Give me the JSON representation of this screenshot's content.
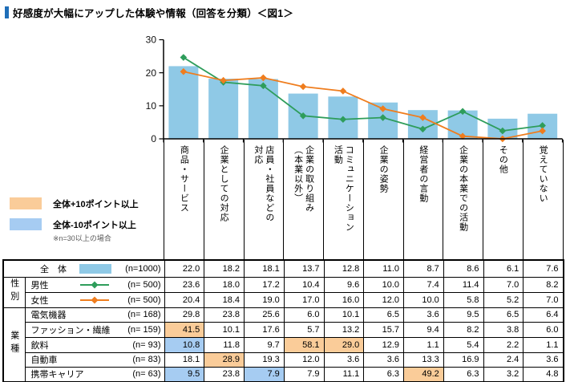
{
  "title": {
    "text": "好感度が大幅にアップした体験や情報（回答を分類）＜図1＞",
    "accent_color": "#1F6EB8"
  },
  "colors": {
    "bar": "#8FC9E6",
    "highlight_plus": "#FACC99",
    "highlight_minus": "#A6CCF2"
  },
  "chart_data": {
    "type": "bar+line",
    "categories": [
      "商品・サービス",
      "企業としての対応",
      "店員・社員などの\n対応",
      "企業の取り組み\n（本業以外）",
      "コミュニケーション\n活動",
      "企業の姿勢",
      "経営者の言動",
      "企業の本業での活動",
      "その他",
      "覚えていない"
    ],
    "series": [
      {
        "name": "全体",
        "type": "bar",
        "n": 1000,
        "color": "#8FC9E6",
        "values": [
          22.0,
          18.2,
          18.1,
          13.7,
          12.8,
          11.0,
          8.7,
          8.6,
          6.1,
          7.6
        ]
      },
      {
        "name": "男性",
        "type": "line",
        "n": 500,
        "color": "#2E9D5B",
        "marker": "diamond",
        "values": [
          23.6,
          18.0,
          17.2,
          10.4,
          9.6,
          10.0,
          7.4,
          11.4,
          7.0,
          8.2
        ]
      },
      {
        "name": "女性",
        "type": "line",
        "n": 500,
        "color": "#EF7D1E",
        "marker": "diamond",
        "values": [
          20.4,
          18.4,
          19.0,
          17.0,
          16.0,
          12.0,
          10.0,
          5.8,
          5.2,
          7.0
        ]
      }
    ],
    "ylim": [
      0,
      30
    ],
    "yticks": [
      0,
      10,
      20,
      30
    ],
    "grid": false,
    "legend_position": "in-table-row-headers",
    "lines_secondary_axis_range": [
      5.2,
      27.6
    ]
  },
  "legend": {
    "plus_label": "全体+10ポイント以上",
    "minus_label": "全体-10ポイント以上",
    "note": "※n=30以上の場合"
  },
  "table": {
    "groups": [
      {
        "label": "性別",
        "start": 1,
        "span": 2
      },
      {
        "label": "業種",
        "start": 3,
        "span": 5
      }
    ],
    "rows": [
      {
        "label": "全　体",
        "n_label": "(n=1000)",
        "marker": "bar",
        "marker_color": "#8FC9E6",
        "divider": "solid",
        "values": [
          "22.0",
          "18.2",
          "18.1",
          "13.7",
          "12.8",
          "11.0",
          "8.7",
          "8.6",
          "6.1",
          "7.6"
        ],
        "highlights": [
          "",
          "",
          "",
          "",
          "",
          "",
          "",
          "",
          "",
          ""
        ]
      },
      {
        "label": "男性",
        "n_label": "(n= 500)",
        "marker": "line",
        "marker_color": "#2E9D5B",
        "divider": "solid",
        "values": [
          "23.6",
          "18.0",
          "17.2",
          "10.4",
          "9.6",
          "10.0",
          "7.4",
          "11.4",
          "7.0",
          "8.2"
        ],
        "highlights": [
          "",
          "",
          "",
          "",
          "",
          "",
          "",
          "",
          "",
          ""
        ]
      },
      {
        "label": "女性",
        "n_label": "(n= 500)",
        "marker": "line",
        "marker_color": "#EF7D1E",
        "divider": "dotted",
        "values": [
          "20.4",
          "18.4",
          "19.0",
          "17.0",
          "16.0",
          "12.0",
          "10.0",
          "5.8",
          "5.2",
          "7.0"
        ],
        "highlights": [
          "",
          "",
          "",
          "",
          "",
          "",
          "",
          "",
          "",
          ""
        ]
      },
      {
        "label": "電気機器",
        "n_label": "(n= 168)",
        "marker": "none",
        "marker_color": "",
        "divider": "solid",
        "values": [
          "29.8",
          "23.8",
          "25.6",
          "6.0",
          "10.1",
          "6.5",
          "3.6",
          "9.5",
          "6.5",
          "6.4"
        ],
        "highlights": [
          "",
          "",
          "",
          "",
          "",
          "",
          "",
          "",
          "",
          ""
        ]
      },
      {
        "label": "ファッション・繊維",
        "n_label": "(n= 159)",
        "marker": "none",
        "marker_color": "",
        "divider": "dotted",
        "values": [
          "41.5",
          "10.1",
          "17.6",
          "5.7",
          "13.2",
          "15.7",
          "9.4",
          "8.2",
          "3.8",
          "6.0"
        ],
        "highlights": [
          "plus",
          "",
          "",
          "",
          "",
          "",
          "",
          "",
          "",
          ""
        ]
      },
      {
        "label": "飲料",
        "n_label": "(n=  93)",
        "marker": "none",
        "marker_color": "",
        "divider": "dotted",
        "values": [
          "10.8",
          "11.8",
          "9.7",
          "58.1",
          "29.0",
          "12.9",
          "1.1",
          "5.4",
          "2.2",
          "1.1"
        ],
        "highlights": [
          "minus",
          "",
          "",
          "plus",
          "plus",
          "",
          "",
          "",
          "",
          ""
        ]
      },
      {
        "label": "自動車",
        "n_label": "(n=  83)",
        "marker": "none",
        "marker_color": "",
        "divider": "dotted",
        "values": [
          "18.1",
          "28.9",
          "19.3",
          "12.0",
          "3.6",
          "3.6",
          "13.3",
          "16.9",
          "2.4",
          "3.6"
        ],
        "highlights": [
          "",
          "plus",
          "",
          "",
          "",
          "",
          "",
          "",
          "",
          ""
        ]
      },
      {
        "label": "携帯キャリア",
        "n_label": "(n=  63)",
        "marker": "none",
        "marker_color": "",
        "divider": "dotted",
        "values": [
          "9.5",
          "23.8",
          "7.9",
          "7.9",
          "11.1",
          "6.3",
          "49.2",
          "6.3",
          "3.2",
          "4.8"
        ],
        "highlights": [
          "minus",
          "",
          "minus",
          "",
          "",
          "",
          "plus",
          "",
          "",
          ""
        ]
      }
    ]
  }
}
